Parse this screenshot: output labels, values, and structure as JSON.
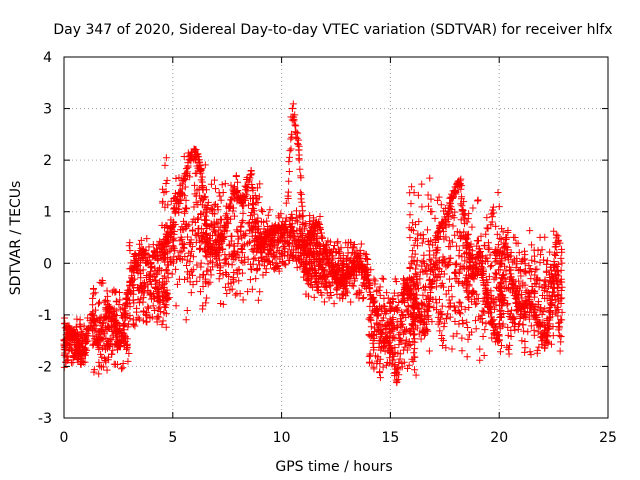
{
  "chart_data": {
    "type": "scatter",
    "title": "Day 347 of 2020, Sidereal Day-to-day VTEC variation (SDTVAR) for receiver hlfx",
    "xlabel": "GPS time / hours",
    "ylabel": "SDTVAR / TECUs",
    "xlim": [
      0,
      25
    ],
    "ylim": [
      -3,
      4
    ],
    "xticks": [
      "0",
      "5",
      "10",
      "15",
      "20",
      "25"
    ],
    "yticks": [
      "-3",
      "-2",
      "-1",
      "0",
      "1",
      "2",
      "3",
      "4"
    ],
    "grid": true,
    "legend": "none",
    "marker": "+",
    "series": [
      {
        "name": "SDTVAR",
        "color": "#ff0000",
        "trend_points": [
          [
            0.0,
            -1.6
          ],
          [
            0.2,
            -1.3
          ],
          [
            0.4,
            -1.4
          ],
          [
            0.6,
            -1.5
          ],
          [
            0.8,
            -1.9
          ],
          [
            1.3,
            -1.0
          ],
          [
            1.6,
            -1.6
          ],
          [
            2.0,
            -0.8
          ],
          [
            2.3,
            -1.2
          ],
          [
            2.6,
            -1.6
          ],
          [
            2.9,
            -0.6
          ],
          [
            3.2,
            -0.1
          ],
          [
            3.6,
            0.2
          ],
          [
            4.0,
            0.0
          ],
          [
            4.4,
            0.3
          ],
          [
            4.8,
            0.5
          ],
          [
            5.1,
            1.0
          ],
          [
            5.5,
            1.6
          ],
          [
            5.8,
            2.1
          ],
          [
            6.1,
            2.1
          ],
          [
            6.3,
            1.8
          ],
          [
            6.6,
            0.4
          ],
          [
            7.0,
            0.2
          ],
          [
            7.4,
            0.7
          ],
          [
            7.8,
            1.4
          ],
          [
            8.2,
            1.2
          ],
          [
            8.6,
            1.8
          ],
          [
            8.9,
            0.3
          ],
          [
            9.3,
            0.5
          ],
          [
            9.7,
            0.6
          ],
          [
            10.2,
            0.7
          ],
          [
            10.5,
            3.0
          ],
          [
            10.8,
            2.2
          ],
          [
            11.0,
            0.3
          ],
          [
            11.3,
            0.5
          ],
          [
            11.7,
            0.8
          ],
          [
            12.0,
            0.2
          ],
          [
            12.4,
            -0.2
          ],
          [
            12.8,
            -0.4
          ],
          [
            13.2,
            -0.1
          ],
          [
            13.6,
            0.1
          ],
          [
            14.0,
            -0.4
          ],
          [
            14.3,
            -0.9
          ],
          [
            14.7,
            -1.5
          ],
          [
            15.0,
            -1.6
          ],
          [
            15.3,
            -2.3
          ],
          [
            15.6,
            -0.4
          ],
          [
            15.9,
            -0.6
          ],
          [
            16.3,
            -1.0
          ],
          [
            16.6,
            -1.3
          ],
          [
            16.9,
            -0.4
          ],
          [
            17.2,
            0.6
          ],
          [
            17.6,
            0.9
          ],
          [
            17.9,
            1.3
          ],
          [
            18.2,
            1.6
          ],
          [
            18.5,
            0.4
          ],
          [
            18.8,
            -0.2
          ],
          [
            19.1,
            0.2
          ],
          [
            19.4,
            -0.6
          ],
          [
            19.7,
            -1.2
          ],
          [
            20.0,
            -1.5
          ],
          [
            20.3,
            0.5
          ],
          [
            20.6,
            -0.4
          ],
          [
            21.0,
            -1.0
          ],
          [
            21.4,
            -0.7
          ],
          [
            21.8,
            -1.2
          ],
          [
            22.1,
            -1.6
          ],
          [
            22.4,
            -0.8
          ],
          [
            22.6,
            0.4
          ],
          [
            22.8,
            -1.7
          ]
        ],
        "clouds": [
          {
            "x": [
              0.0,
              1.1
            ],
            "y": [
              -2.1,
              -1.0
            ]
          },
          {
            "x": [
              1.3,
              3.0
            ],
            "y": [
              -2.2,
              -0.3
            ]
          },
          {
            "x": [
              3.0,
              4.8
            ],
            "y": [
              -1.5,
              0.6
            ]
          },
          {
            "x": [
              4.5,
              6.6
            ],
            "y": [
              -1.2,
              2.2
            ]
          },
          {
            "x": [
              6.5,
              9.0
            ],
            "y": [
              -0.9,
              1.8
            ]
          },
          {
            "x": [
              9.0,
              11.8
            ],
            "y": [
              -0.3,
              1.1
            ]
          },
          {
            "x": [
              11.0,
              14.0
            ],
            "y": [
              -0.8,
              0.5
            ]
          },
          {
            "x": [
              14.0,
              16.2
            ],
            "y": [
              -2.3,
              -0.1
            ]
          },
          {
            "x": [
              15.8,
              18.8
            ],
            "y": [
              -1.9,
              1.7
            ]
          },
          {
            "x": [
              18.5,
              20.2
            ],
            "y": [
              -2.0,
              1.4
            ]
          },
          {
            "x": [
              20.0,
              22.9
            ],
            "y": [
              -1.9,
              0.8
            ]
          }
        ]
      }
    ]
  }
}
